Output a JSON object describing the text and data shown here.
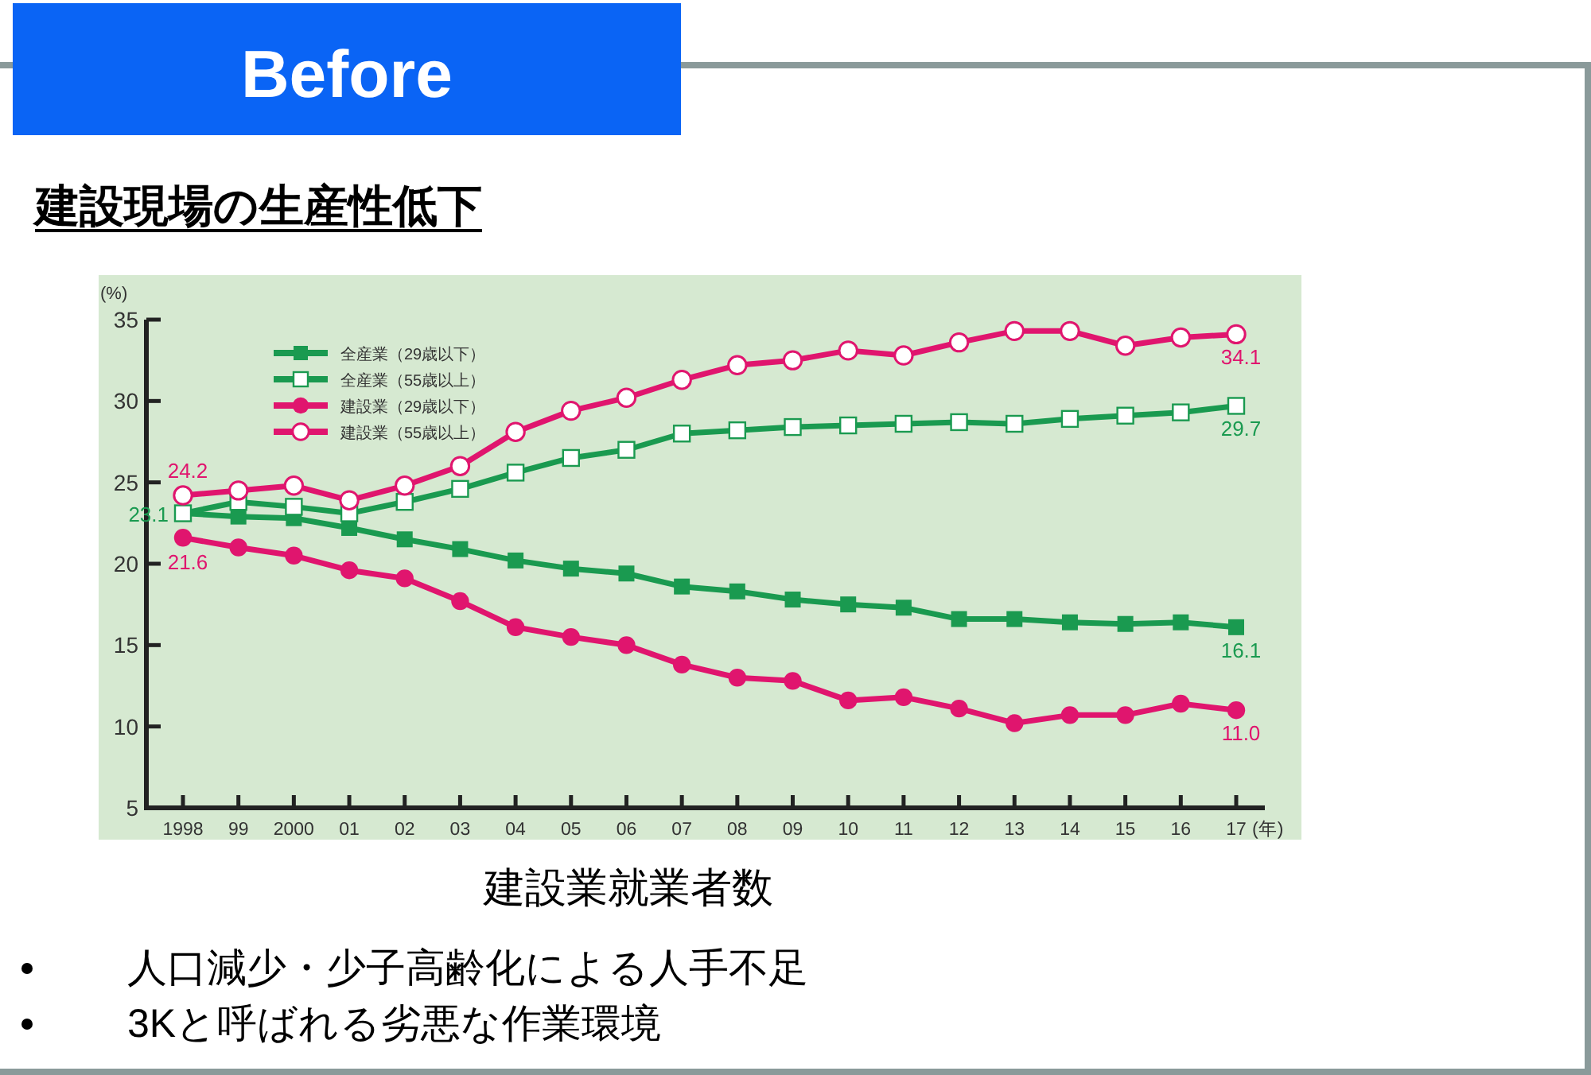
{
  "chart_data": {
    "type": "line",
    "title": "建設業就業者数",
    "ylabel": "(%)",
    "xlabel": "(年)",
    "annotations": [
      "Before",
      "建設現場の生産性低下",
      "人口減少・少子高齢化による人手不足",
      "3Kと呼ばれる劣悪な作業環境"
    ],
    "categories": [
      "1998",
      "99",
      "2000",
      "01",
      "02",
      "03",
      "04",
      "05",
      "06",
      "07",
      "08",
      "09",
      "10",
      "11",
      "12",
      "13",
      "14",
      "15",
      "16",
      "17"
    ],
    "ylim": [
      5,
      35
    ],
    "yticks": [
      5,
      10,
      15,
      20,
      25,
      30,
      35
    ],
    "grid": false,
    "legend": "top left",
    "series": [
      {
        "name": "全産業（29歳以下）",
        "color": "#1a9a50",
        "marker": "square",
        "values": [
          23.1,
          22.9,
          22.8,
          22.2,
          21.5,
          20.9,
          20.2,
          19.7,
          19.4,
          18.6,
          18.3,
          17.8,
          17.5,
          17.3,
          16.6,
          16.6,
          16.4,
          16.3,
          16.4,
          16.1
        ],
        "value_labels": [
          null,
          null,
          null,
          null,
          null,
          null,
          null,
          null,
          null,
          null,
          null,
          null,
          null,
          null,
          null,
          null,
          null,
          null,
          null,
          "16.1"
        ]
      },
      {
        "name": "全産業（55歳以上）",
        "color": "#1a9a50",
        "marker": "square",
        "values": [
          23.1,
          23.8,
          23.5,
          23.1,
          23.8,
          24.6,
          25.6,
          26.5,
          27.0,
          28.0,
          28.2,
          28.4,
          28.5,
          28.6,
          28.7,
          28.6,
          28.9,
          29.1,
          29.3,
          29.7
        ],
        "value_labels": [
          "23.1",
          null,
          null,
          null,
          null,
          null,
          null,
          null,
          null,
          null,
          null,
          null,
          null,
          null,
          null,
          null,
          null,
          null,
          null,
          "29.7"
        ]
      },
      {
        "name": "建設業（29歳以下）",
        "color": "#e0156e",
        "marker": "circle",
        "values": [
          21.6,
          21.0,
          20.5,
          19.6,
          19.1,
          17.7,
          16.1,
          15.5,
          15.0,
          13.8,
          13.0,
          12.8,
          11.6,
          11.8,
          11.1,
          10.2,
          10.7,
          10.7,
          11.4,
          11.0
        ],
        "value_labels": [
          "21.6",
          null,
          null,
          null,
          null,
          null,
          null,
          null,
          null,
          null,
          null,
          null,
          null,
          null,
          null,
          null,
          null,
          null,
          null,
          "11.0"
        ]
      },
      {
        "name": "建設業（55歳以上）",
        "color": "#e0156e",
        "marker": "circle",
        "values": [
          24.2,
          24.5,
          24.8,
          23.9,
          24.8,
          26.0,
          28.1,
          29.4,
          30.2,
          31.3,
          32.2,
          32.5,
          33.1,
          32.8,
          33.6,
          34.3,
          34.3,
          33.4,
          33.9,
          34.1
        ],
        "value_labels": [
          "24.2",
          null,
          null,
          null,
          null,
          null,
          null,
          null,
          null,
          null,
          null,
          null,
          null,
          null,
          null,
          null,
          null,
          null,
          null,
          "34.1"
        ]
      }
    ]
  }
}
